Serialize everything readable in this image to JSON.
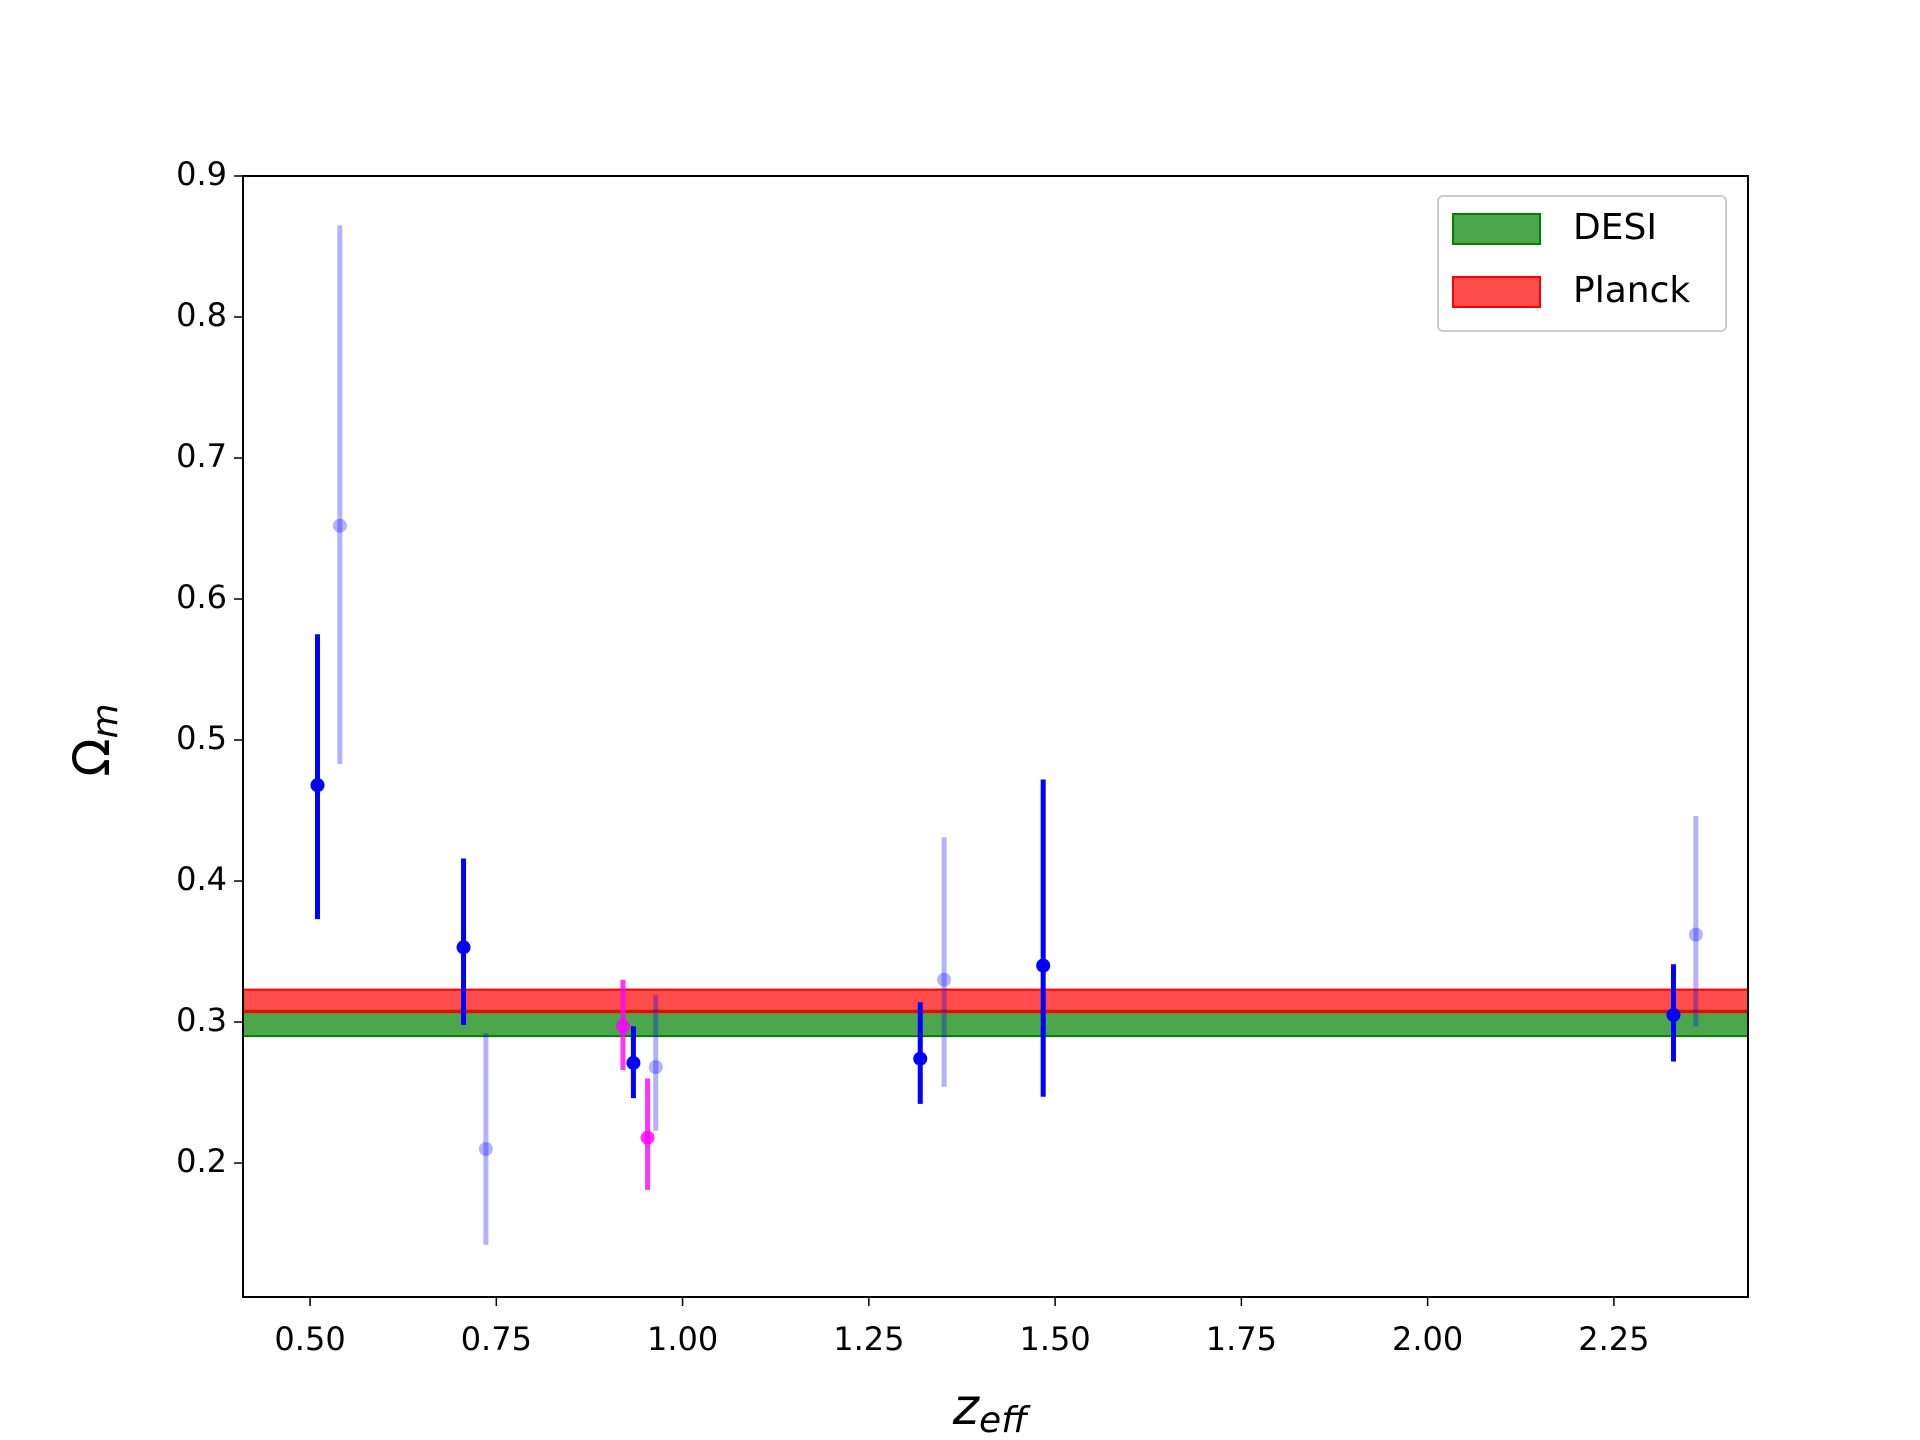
{
  "chart_data": {
    "type": "errorbar",
    "xlabel": {
      "text": "z",
      "subscript": "eff"
    },
    "ylabel": {
      "text": "Ω",
      "subscript": "m"
    },
    "xlim": [
      0.41,
      2.43
    ],
    "ylim": [
      0.105,
      0.9
    ],
    "xticks": [
      {
        "value": 0.5,
        "label": "0.50"
      },
      {
        "value": 0.75,
        "label": "0.75"
      },
      {
        "value": 1.0,
        "label": "1.00"
      },
      {
        "value": 1.25,
        "label": "1.25"
      },
      {
        "value": 1.5,
        "label": "1.50"
      },
      {
        "value": 1.75,
        "label": "1.75"
      },
      {
        "value": 2.0,
        "label": "2.00"
      },
      {
        "value": 2.25,
        "label": "2.25"
      }
    ],
    "yticks": [
      0.2,
      0.3,
      0.4,
      0.5,
      0.6,
      0.7,
      0.8,
      0.9
    ],
    "legend": "upper right",
    "bands": [
      {
        "name": "DESI",
        "color": "#008000",
        "alpha": 0.7,
        "range": [
          0.29,
          0.308
        ]
      },
      {
        "name": "Planck",
        "color": "#ff0000",
        "alpha": 0.7,
        "range": [
          0.307,
          0.323
        ]
      }
    ],
    "series": [
      {
        "color": "#0000ff",
        "alpha": 1,
        "x": [
          0.51,
          0.706,
          0.934,
          1.319,
          1.484,
          2.33
        ],
        "values": [
          0.468,
          0.353,
          0.271,
          0.274,
          0.34,
          0.305
        ],
        "lower": [
          0.373,
          0.298,
          0.246,
          0.242,
          0.247,
          0.272
        ],
        "upper": [
          0.575,
          0.416,
          0.297,
          0.314,
          0.472,
          0.341
        ]
      },
      {
        "color": "#0000ff",
        "alpha": 0.3,
        "x": [
          0.54,
          0.736,
          0.964,
          1.351,
          2.36
        ],
        "values": [
          0.652,
          0.21,
          0.268,
          0.33,
          0.362
        ],
        "lower": [
          0.483,
          0.142,
          0.223,
          0.254,
          0.297
        ],
        "upper": [
          0.865,
          0.292,
          0.319,
          0.431,
          0.446
        ]
      },
      {
        "color": "#ff00ff",
        "alpha": 0.8,
        "x": [
          0.92,
          0.953
        ],
        "values": [
          0.297,
          0.218
        ],
        "lower": [
          0.266,
          0.181
        ],
        "upper": [
          0.33,
          0.26
        ]
      }
    ]
  }
}
